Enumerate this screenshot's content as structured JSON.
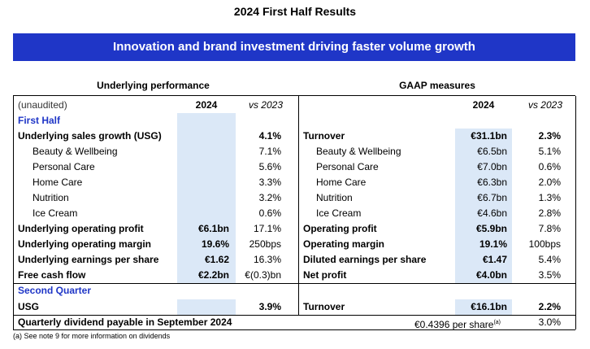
{
  "title": "2024 First Half Results",
  "banner": "Innovation and brand investment driving faster volume growth",
  "left_heading": "Underlying performance",
  "right_heading": "GAAP measures",
  "columns": {
    "unaudited": "(unaudited)",
    "year_left": "2024",
    "vs_left": "vs 2023",
    "year_right": "2024",
    "vs_right": "vs 2023"
  },
  "section_first_half": "First Half",
  "section_second_quarter": "Second Quarter",
  "rows": [
    {
      "l_label": "Underlying sales growth (USG)",
      "l_val": "",
      "l_vs": "4.1%",
      "r_label": "Turnover",
      "r_val": "€31.1bn",
      "r_vs": "2.3%"
    },
    {
      "l_label": "Beauty & Wellbeing",
      "l_val": "",
      "l_vs": "7.1%",
      "r_label": "Beauty & Wellbeing",
      "r_val": "€6.5bn",
      "r_vs": "5.1%"
    },
    {
      "l_label": "Personal Care",
      "l_val": "",
      "l_vs": "5.6%",
      "r_label": "Personal Care",
      "r_val": "€7.0bn",
      "r_vs": "0.6%"
    },
    {
      "l_label": "Home Care",
      "l_val": "",
      "l_vs": "3.3%",
      "r_label": "Home Care",
      "r_val": "€6.3bn",
      "r_vs": "2.0%"
    },
    {
      "l_label": "Nutrition",
      "l_val": "",
      "l_vs": "3.2%",
      "r_label": "Nutrition",
      "r_val": "€6.7bn",
      "r_vs": "1.3%"
    },
    {
      "l_label": "Ice Cream",
      "l_val": "",
      "l_vs": "0.6%",
      "r_label": "Ice Cream",
      "r_val": "€4.6bn",
      "r_vs": "2.8%"
    },
    {
      "l_label": "Underlying operating profit",
      "l_val": "€6.1bn",
      "l_vs": "17.1%",
      "r_label": "Operating profit",
      "r_val": "€5.9bn",
      "r_vs": "7.8%"
    },
    {
      "l_label": "Underlying operating margin",
      "l_val": "19.6%",
      "l_vs": "250bps",
      "r_label": "Operating margin",
      "r_val": "19.1%",
      "r_vs": "100bps"
    },
    {
      "l_label": "Underlying earnings per share",
      "l_val": "€1.62",
      "l_vs": "16.3%",
      "r_label": "Diluted earnings per share",
      "r_val": "€1.47",
      "r_vs": "5.4%"
    },
    {
      "l_label": "Free cash flow",
      "l_val": "€2.2bn",
      "l_vs": "€(0.3)bn",
      "r_label": "Net profit",
      "r_val": "€4.0bn",
      "r_vs": "3.5%"
    }
  ],
  "q2": {
    "l_label": "USG",
    "l_vs": "3.9%",
    "r_label": "Turnover",
    "r_val": "€16.1bn",
    "r_vs": "2.2%"
  },
  "dividend": {
    "label": "Quarterly dividend payable in September 2024",
    "value": "€0.4396",
    "per_share": "per share",
    "note_mark": "(a)",
    "vs": "3.0%"
  },
  "footnote": "(a) See note 9 for more information on dividends"
}
